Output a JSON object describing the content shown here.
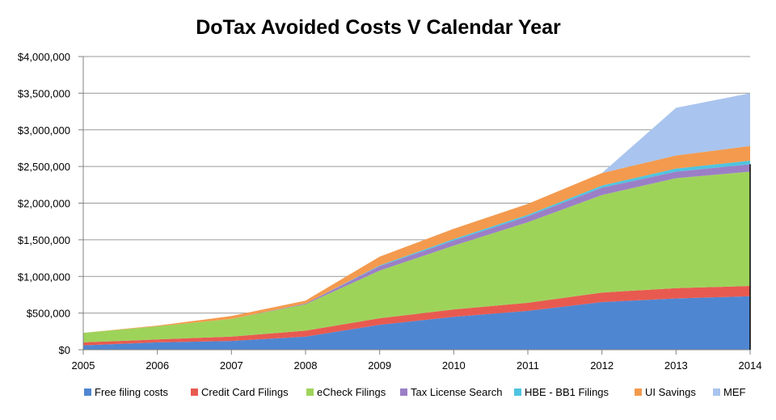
{
  "chart_data": {
    "type": "area",
    "stacked": true,
    "title": "DoTax Avoided Costs V Calendar Year",
    "xlabel": "",
    "ylabel": "",
    "x": [
      2005,
      2006,
      2007,
      2008,
      2009,
      2010,
      2011,
      2012,
      2013,
      2014
    ],
    "x_tick_labels": [
      "2005",
      "2006",
      "2007",
      "2008",
      "2009",
      "2010",
      "2011",
      "2012",
      "2013",
      "2014"
    ],
    "ylim": [
      0,
      4000000
    ],
    "y_ticks": [
      0,
      500000,
      1000000,
      1500000,
      2000000,
      2500000,
      3000000,
      3500000,
      4000000
    ],
    "y_tick_labels": [
      "$0",
      "$500,000",
      "$1,000,000",
      "$1,500,000",
      "$2,000,000",
      "$2,500,000",
      "$3,000,000",
      "$3,500,000",
      "$4,000,000"
    ],
    "grid": true,
    "legend_position": "bottom",
    "series": [
      {
        "name": "Free filing costs",
        "color": "#4f86d1",
        "values": [
          60000,
          100000,
          120000,
          180000,
          340000,
          450000,
          530000,
          650000,
          700000,
          730000
        ]
      },
      {
        "name": "Credit Card Filings",
        "color": "#e85a50",
        "values": [
          40000,
          40000,
          60000,
          80000,
          90000,
          100000,
          110000,
          130000,
          140000,
          140000
        ]
      },
      {
        "name": "eCheck Filings",
        "color": "#9ed35a",
        "values": [
          130000,
          180000,
          240000,
          360000,
          650000,
          870000,
          1100000,
          1330000,
          1500000,
          1560000
        ]
      },
      {
        "name": "Tax License Search",
        "color": "#9b7fc6",
        "values": [
          0,
          0,
          0,
          10000,
          60000,
          70000,
          80000,
          100000,
          90000,
          100000
        ]
      },
      {
        "name": "HBE - BB1 Filings",
        "color": "#4ec4e0",
        "values": [
          0,
          0,
          0,
          0,
          10000,
          20000,
          20000,
          30000,
          40000,
          50000
        ]
      },
      {
        "name": "UI Savings",
        "color": "#f39a4e",
        "values": [
          0,
          10000,
          40000,
          40000,
          120000,
          140000,
          150000,
          170000,
          180000,
          200000
        ]
      },
      {
        "name": "MEF",
        "color": "#a9c4ee",
        "values": [
          0,
          0,
          0,
          0,
          0,
          0,
          0,
          0,
          650000,
          720000
        ]
      }
    ]
  }
}
